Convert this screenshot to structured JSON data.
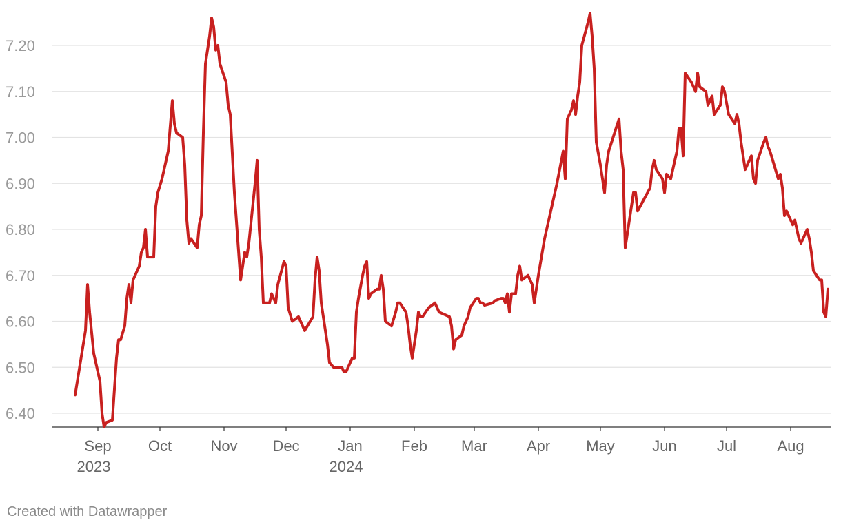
{
  "footer": {
    "credit": "Created with Datawrapper"
  },
  "chart_data": {
    "type": "line",
    "title": "",
    "xlabel": "",
    "ylabel": "",
    "ylim": [
      6.4,
      7.2
    ],
    "yticks": [
      {
        "value": 6.4,
        "label": "6.40"
      },
      {
        "value": 6.5,
        "label": "6.50"
      },
      {
        "value": 6.6,
        "label": "6.60"
      },
      {
        "value": 6.7,
        "label": "6.70"
      },
      {
        "value": 6.8,
        "label": "6.80"
      },
      {
        "value": 6.9,
        "label": "6.90"
      },
      {
        "value": 7.0,
        "label": "7.00"
      },
      {
        "value": 7.1,
        "label": "7.10"
      },
      {
        "value": 7.2,
        "label": "7.20"
      }
    ],
    "xticks": [
      {
        "date": "2023-09-01",
        "label": "Sep",
        "sublabel": "2023"
      },
      {
        "date": "2023-10-01",
        "label": "Oct",
        "sublabel": ""
      },
      {
        "date": "2023-11-01",
        "label": "Nov",
        "sublabel": ""
      },
      {
        "date": "2023-12-01",
        "label": "Dec",
        "sublabel": ""
      },
      {
        "date": "2024-01-01",
        "label": "Jan",
        "sublabel": "2024"
      },
      {
        "date": "2024-02-01",
        "label": "Feb",
        "sublabel": ""
      },
      {
        "date": "2024-03-01",
        "label": "Mar",
        "sublabel": ""
      },
      {
        "date": "2024-04-01",
        "label": "Apr",
        "sublabel": ""
      },
      {
        "date": "2024-05-01",
        "label": "May",
        "sublabel": ""
      },
      {
        "date": "2024-06-01",
        "label": "Jun",
        "sublabel": ""
      },
      {
        "date": "2024-07-01",
        "label": "Jul",
        "sublabel": ""
      },
      {
        "date": "2024-08-01",
        "label": "Aug",
        "sublabel": ""
      }
    ],
    "grid": true,
    "series": [
      {
        "color": "#c8201f",
        "points": [
          [
            "2023-08-21",
            6.44
          ],
          [
            "2023-08-26",
            6.58
          ],
          [
            "2023-08-27",
            6.68
          ],
          [
            "2023-08-28",
            6.62
          ],
          [
            "2023-08-30",
            6.53
          ],
          [
            "2023-09-02",
            6.47
          ],
          [
            "2023-09-03",
            6.4
          ],
          [
            "2023-09-04",
            6.37
          ],
          [
            "2023-09-05",
            6.38
          ],
          [
            "2023-09-08",
            6.385
          ],
          [
            "2023-09-10",
            6.52
          ],
          [
            "2023-09-11",
            6.56
          ],
          [
            "2023-09-12",
            6.56
          ],
          [
            "2023-09-14",
            6.59
          ],
          [
            "2023-09-15",
            6.65
          ],
          [
            "2023-09-16",
            6.68
          ],
          [
            "2023-09-17",
            6.64
          ],
          [
            "2023-09-18",
            6.69
          ],
          [
            "2023-09-21",
            6.72
          ],
          [
            "2023-09-22",
            6.75
          ],
          [
            "2023-09-23",
            6.76
          ],
          [
            "2023-09-24",
            6.8
          ],
          [
            "2023-09-25",
            6.74
          ],
          [
            "2023-09-28",
            6.74
          ],
          [
            "2023-09-29",
            6.85
          ],
          [
            "2023-09-30",
            6.88
          ],
          [
            "2023-10-02",
            6.91
          ],
          [
            "2023-10-05",
            6.97
          ],
          [
            "2023-10-07",
            7.08
          ],
          [
            "2023-10-08",
            7.03
          ],
          [
            "2023-10-09",
            7.01
          ],
          [
            "2023-10-12",
            7.0
          ],
          [
            "2023-10-13",
            6.94
          ],
          [
            "2023-10-14",
            6.82
          ],
          [
            "2023-10-15",
            6.77
          ],
          [
            "2023-10-16",
            6.78
          ],
          [
            "2023-10-19",
            6.76
          ],
          [
            "2023-10-20",
            6.81
          ],
          [
            "2023-10-21",
            6.83
          ],
          [
            "2023-10-22",
            7.01
          ],
          [
            "2023-10-23",
            7.16
          ],
          [
            "2023-10-25",
            7.22
          ],
          [
            "2023-10-26",
            7.26
          ],
          [
            "2023-10-27",
            7.24
          ],
          [
            "2023-10-28",
            7.19
          ],
          [
            "2023-10-29",
            7.2
          ],
          [
            "2023-10-30",
            7.16
          ],
          [
            "2023-11-02",
            7.12
          ],
          [
            "2023-11-03",
            7.07
          ],
          [
            "2023-11-04",
            7.05
          ],
          [
            "2023-11-06",
            6.88
          ],
          [
            "2023-11-09",
            6.69
          ],
          [
            "2023-11-10",
            6.72
          ],
          [
            "2023-11-11",
            6.75
          ],
          [
            "2023-11-12",
            6.74
          ],
          [
            "2023-11-13",
            6.77
          ],
          [
            "2023-11-16",
            6.9
          ],
          [
            "2023-11-17",
            6.95
          ],
          [
            "2023-11-18",
            6.8
          ],
          [
            "2023-11-19",
            6.74
          ],
          [
            "2023-11-20",
            6.64
          ],
          [
            "2023-11-23",
            6.64
          ],
          [
            "2023-11-24",
            6.66
          ],
          [
            "2023-11-25",
            6.65
          ],
          [
            "2023-11-26",
            6.64
          ],
          [
            "2023-11-27",
            6.68
          ],
          [
            "2023-11-30",
            6.73
          ],
          [
            "2023-12-01",
            6.72
          ],
          [
            "2023-12-02",
            6.63
          ],
          [
            "2023-12-04",
            6.6
          ],
          [
            "2023-12-07",
            6.61
          ],
          [
            "2023-12-08",
            6.6
          ],
          [
            "2023-12-10",
            6.58
          ],
          [
            "2023-12-14",
            6.61
          ],
          [
            "2023-12-15",
            6.69
          ],
          [
            "2023-12-16",
            6.74
          ],
          [
            "2023-12-17",
            6.71
          ],
          [
            "2023-12-18",
            6.64
          ],
          [
            "2023-12-21",
            6.55
          ],
          [
            "2023-12-22",
            6.51
          ],
          [
            "2023-12-24",
            6.5
          ],
          [
            "2023-12-25",
            6.5
          ],
          [
            "2023-12-28",
            6.5
          ],
          [
            "2023-12-29",
            6.49
          ],
          [
            "2023-12-30",
            6.49
          ],
          [
            "2024-01-02",
            6.52
          ],
          [
            "2024-01-03",
            6.52
          ],
          [
            "2024-01-04",
            6.62
          ],
          [
            "2024-01-05",
            6.65
          ],
          [
            "2024-01-07",
            6.7
          ],
          [
            "2024-01-08",
            6.72
          ],
          [
            "2024-01-09",
            6.73
          ],
          [
            "2024-01-10",
            6.65
          ],
          [
            "2024-01-11",
            6.66
          ],
          [
            "2024-01-14",
            6.67
          ],
          [
            "2024-01-15",
            6.67
          ],
          [
            "2024-01-16",
            6.7
          ],
          [
            "2024-01-17",
            6.67
          ],
          [
            "2024-01-18",
            6.6
          ],
          [
            "2024-01-21",
            6.59
          ],
          [
            "2024-01-23",
            6.62
          ],
          [
            "2024-01-24",
            6.64
          ],
          [
            "2024-01-25",
            6.64
          ],
          [
            "2024-01-28",
            6.62
          ],
          [
            "2024-01-29",
            6.59
          ],
          [
            "2024-01-30",
            6.55
          ],
          [
            "2024-01-31",
            6.52
          ],
          [
            "2024-02-02",
            6.58
          ],
          [
            "2024-02-03",
            6.62
          ],
          [
            "2024-02-04",
            6.61
          ],
          [
            "2024-02-05",
            6.61
          ],
          [
            "2024-02-08",
            6.63
          ],
          [
            "2024-02-11",
            6.64
          ],
          [
            "2024-02-12",
            6.63
          ],
          [
            "2024-02-13",
            6.62
          ],
          [
            "2024-02-18",
            6.61
          ],
          [
            "2024-02-19",
            6.59
          ],
          [
            "2024-02-20",
            6.54
          ],
          [
            "2024-02-21",
            6.56
          ],
          [
            "2024-02-24",
            6.57
          ],
          [
            "2024-02-25",
            6.59
          ],
          [
            "2024-02-27",
            6.61
          ],
          [
            "2024-02-28",
            6.63
          ],
          [
            "2024-03-02",
            6.65
          ],
          [
            "2024-03-03",
            6.65
          ],
          [
            "2024-03-04",
            6.64
          ],
          [
            "2024-03-05",
            6.64
          ],
          [
            "2024-03-06",
            6.635
          ],
          [
            "2024-03-10",
            6.64
          ],
          [
            "2024-03-11",
            6.645
          ],
          [
            "2024-03-14",
            6.65
          ],
          [
            "2024-03-15",
            6.65
          ],
          [
            "2024-03-16",
            6.64
          ],
          [
            "2024-03-17",
            6.66
          ],
          [
            "2024-03-18",
            6.62
          ],
          [
            "2024-03-19",
            6.66
          ],
          [
            "2024-03-20",
            6.66
          ],
          [
            "2024-03-21",
            6.66
          ],
          [
            "2024-03-22",
            6.7
          ],
          [
            "2024-03-23",
            6.72
          ],
          [
            "2024-03-24",
            6.69
          ],
          [
            "2024-03-27",
            6.7
          ],
          [
            "2024-03-29",
            6.68
          ],
          [
            "2024-03-30",
            6.64
          ],
          [
            "2024-04-01",
            6.7
          ],
          [
            "2024-04-04",
            6.78
          ],
          [
            "2024-04-10",
            6.9
          ],
          [
            "2024-04-13",
            6.97
          ],
          [
            "2024-04-14",
            6.91
          ],
          [
            "2024-04-15",
            7.04
          ],
          [
            "2024-04-17",
            7.06
          ],
          [
            "2024-04-18",
            7.08
          ],
          [
            "2024-04-19",
            7.05
          ],
          [
            "2024-04-20",
            7.09
          ],
          [
            "2024-04-21",
            7.12
          ],
          [
            "2024-04-22",
            7.2
          ],
          [
            "2024-04-25",
            7.25
          ],
          [
            "2024-04-26",
            7.27
          ],
          [
            "2024-04-27",
            7.22
          ],
          [
            "2024-04-28",
            7.15
          ],
          [
            "2024-04-29",
            6.99
          ],
          [
            "2024-05-01",
            6.94
          ],
          [
            "2024-05-03",
            6.88
          ],
          [
            "2024-05-04",
            6.94
          ],
          [
            "2024-05-05",
            6.97
          ],
          [
            "2024-05-10",
            7.04
          ],
          [
            "2024-05-11",
            6.97
          ],
          [
            "2024-05-12",
            6.93
          ],
          [
            "2024-05-13",
            6.76
          ],
          [
            "2024-05-14",
            6.79
          ],
          [
            "2024-05-17",
            6.88
          ],
          [
            "2024-05-18",
            6.88
          ],
          [
            "2024-05-19",
            6.84
          ],
          [
            "2024-05-25",
            6.89
          ],
          [
            "2024-05-26",
            6.93
          ],
          [
            "2024-05-27",
            6.95
          ],
          [
            "2024-05-28",
            6.93
          ],
          [
            "2024-05-31",
            6.91
          ],
          [
            "2024-06-01",
            6.88
          ],
          [
            "2024-06-02",
            6.92
          ],
          [
            "2024-06-04",
            6.91
          ],
          [
            "2024-06-07",
            6.97
          ],
          [
            "2024-06-08",
            7.02
          ],
          [
            "2024-06-09",
            7.02
          ],
          [
            "2024-06-10",
            6.96
          ],
          [
            "2024-06-11",
            7.14
          ],
          [
            "2024-06-14",
            7.12
          ],
          [
            "2024-06-16",
            7.1
          ],
          [
            "2024-06-17",
            7.14
          ],
          [
            "2024-06-18",
            7.11
          ],
          [
            "2024-06-21",
            7.1
          ],
          [
            "2024-06-22",
            7.07
          ],
          [
            "2024-06-23",
            7.08
          ],
          [
            "2024-06-24",
            7.09
          ],
          [
            "2024-06-25",
            7.05
          ],
          [
            "2024-06-28",
            7.07
          ],
          [
            "2024-06-29",
            7.11
          ],
          [
            "2024-06-30",
            7.1
          ],
          [
            "2024-07-02",
            7.05
          ],
          [
            "2024-07-05",
            7.03
          ],
          [
            "2024-07-06",
            7.05
          ],
          [
            "2024-07-07",
            7.03
          ],
          [
            "2024-07-08",
            6.99
          ],
          [
            "2024-07-10",
            6.93
          ],
          [
            "2024-07-11",
            6.94
          ],
          [
            "2024-07-13",
            6.96
          ],
          [
            "2024-07-14",
            6.91
          ],
          [
            "2024-07-15",
            6.9
          ],
          [
            "2024-07-16",
            6.95
          ],
          [
            "2024-07-19",
            6.99
          ],
          [
            "2024-07-20",
            7.0
          ],
          [
            "2024-07-21",
            6.98
          ],
          [
            "2024-07-22",
            6.97
          ],
          [
            "2024-07-24",
            6.94
          ],
          [
            "2024-07-26",
            6.91
          ],
          [
            "2024-07-27",
            6.92
          ],
          [
            "2024-07-28",
            6.89
          ],
          [
            "2024-07-29",
            6.83
          ],
          [
            "2024-07-30",
            6.84
          ],
          [
            "2024-08-01",
            6.82
          ],
          [
            "2024-08-02",
            6.81
          ],
          [
            "2024-08-03",
            6.82
          ],
          [
            "2024-08-05",
            6.78
          ],
          [
            "2024-08-06",
            6.77
          ],
          [
            "2024-08-09",
            6.8
          ],
          [
            "2024-08-10",
            6.78
          ],
          [
            "2024-08-11",
            6.75
          ],
          [
            "2024-08-12",
            6.71
          ],
          [
            "2024-08-15",
            6.69
          ],
          [
            "2024-08-16",
            6.69
          ],
          [
            "2024-08-17",
            6.62
          ],
          [
            "2024-08-18",
            6.61
          ],
          [
            "2024-08-19",
            6.67
          ]
        ]
      }
    ]
  }
}
